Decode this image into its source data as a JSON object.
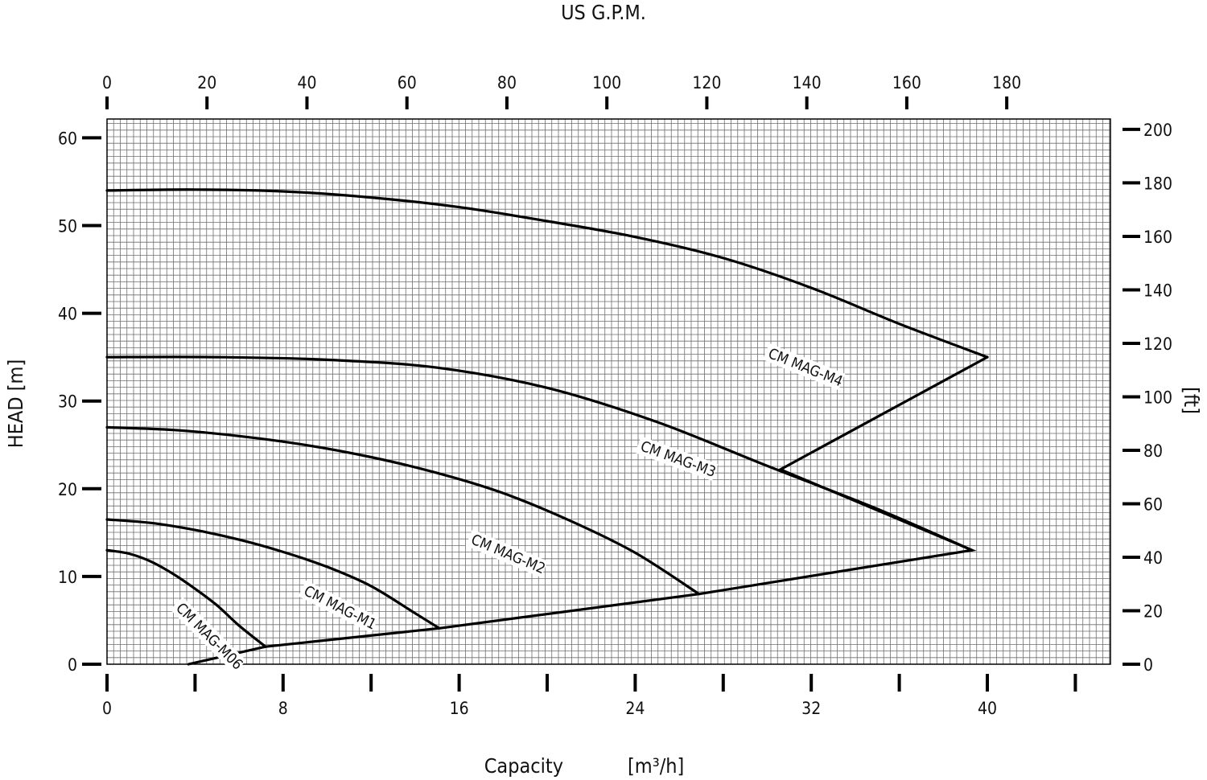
{
  "chart_data": {
    "type": "line",
    "title_top": "US G.P.M.",
    "xlabel": "Capacity",
    "xlabel_unit": "[m³/h]",
    "ylabel": "HEAD [m]",
    "ylabel_right": "[ft]",
    "x_range": [
      0,
      45.5
    ],
    "y_range": [
      0,
      60.8
    ],
    "grid": true,
    "x_ticks": [
      0,
      8,
      16,
      24,
      32,
      40
    ],
    "x_minor_ticks": [
      4,
      12,
      20,
      28,
      36,
      44
    ],
    "y_ticks": [
      0,
      10,
      20,
      30,
      40,
      50,
      60
    ],
    "gpm_ticks": [
      0,
      20,
      40,
      60,
      80,
      100,
      120,
      140,
      160,
      180
    ],
    "ft_ticks": [
      0,
      20,
      40,
      60,
      80,
      100,
      120,
      140,
      160,
      180,
      200
    ],
    "series": [
      {
        "name": "CM MAG-M06",
        "label_at": {
          "x": 3.1,
          "y": 6.3,
          "angle": 45
        },
        "points": [
          [
            0,
            13
          ],
          [
            1,
            12.6
          ],
          [
            2,
            11.7
          ],
          [
            3,
            10.3
          ],
          [
            4,
            8.6
          ],
          [
            5,
            6.7
          ],
          [
            6,
            4.4
          ],
          [
            7.2,
            2.0
          ]
        ]
      },
      {
        "name": "CM MAG-M1",
        "label_at": {
          "x": 8.9,
          "y": 8.0,
          "angle": 27
        },
        "points": [
          [
            0,
            16.5
          ],
          [
            2,
            16.1
          ],
          [
            4,
            15.3
          ],
          [
            6,
            14.2
          ],
          [
            8,
            12.8
          ],
          [
            10,
            11.1
          ],
          [
            12,
            8.9
          ],
          [
            14,
            5.8
          ],
          [
            15.1,
            4.1
          ]
        ]
      },
      {
        "name": "CM MAG-M2",
        "label_at": {
          "x": 16.5,
          "y": 13.8,
          "angle": 23
        },
        "points": [
          [
            0,
            27
          ],
          [
            3,
            26.7
          ],
          [
            6,
            26
          ],
          [
            9,
            25
          ],
          [
            12,
            23.6
          ],
          [
            15,
            21.8
          ],
          [
            18,
            19.5
          ],
          [
            21,
            16.4
          ],
          [
            24,
            12.7
          ],
          [
            26.9,
            8.0
          ]
        ]
      },
      {
        "name": "CM MAG-M3",
        "label_at": {
          "x": 24.2,
          "y": 24.4,
          "angle": 20
        },
        "points": [
          [
            0,
            35
          ],
          [
            5,
            35
          ],
          [
            10,
            34.7
          ],
          [
            15,
            33.8
          ],
          [
            20,
            31.5
          ],
          [
            25,
            27.6
          ],
          [
            30,
            22.6
          ],
          [
            35,
            17.7
          ],
          [
            39.3,
            13.0
          ]
        ]
      },
      {
        "name": "CM MAG-M4",
        "label_at": {
          "x": 30.0,
          "y": 35.0,
          "angle": 22
        },
        "points": [
          [
            0,
            54
          ],
          [
            4,
            54.1
          ],
          [
            8,
            53.9
          ],
          [
            12,
            53.2
          ],
          [
            16,
            52.1
          ],
          [
            20,
            50.5
          ],
          [
            24,
            48.7
          ],
          [
            28,
            46.3
          ],
          [
            32,
            42.9
          ],
          [
            36,
            38.8
          ],
          [
            40,
            35
          ]
        ]
      }
    ],
    "operating_limit": {
      "points": [
        [
          3.7,
          0
        ],
        [
          7.2,
          2.0
        ],
        [
          15.1,
          4.1
        ],
        [
          26.9,
          8.0
        ],
        [
          39.3,
          13.0
        ],
        [
          30.6,
          22.2
        ],
        [
          40,
          35
        ]
      ]
    }
  }
}
